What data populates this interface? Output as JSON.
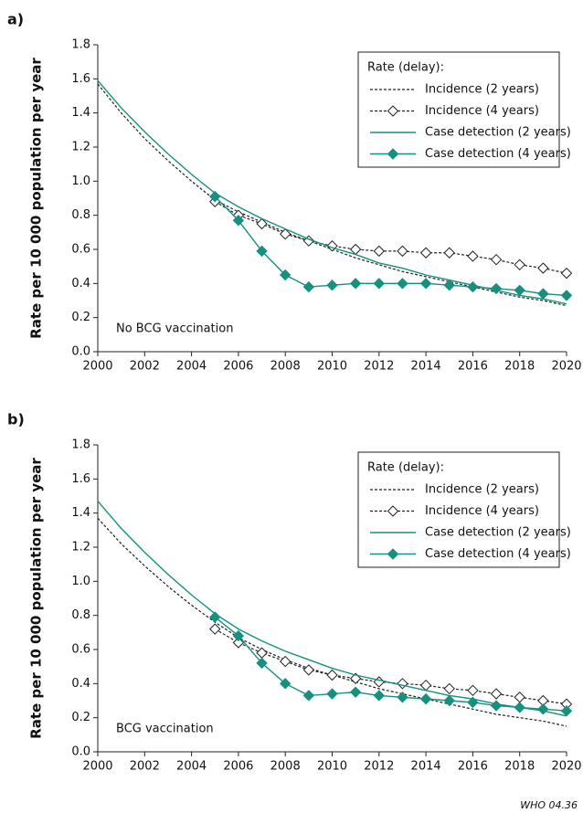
{
  "chart_data": [
    {
      "type": "line",
      "panel_label": "a)",
      "y_label": "Rate per 10 000 population per year",
      "annotation": "No BCG vaccination",
      "legend_title": "Rate (delay):",
      "legend": "upper right",
      "x": [
        2000,
        2001,
        2002,
        2003,
        2004,
        2005,
        2006,
        2007,
        2008,
        2009,
        2010,
        2011,
        2012,
        2013,
        2014,
        2015,
        2016,
        2017,
        2018,
        2019,
        2020
      ],
      "xlim": [
        2000,
        2020
      ],
      "xticks": [
        2000,
        2002,
        2004,
        2006,
        2008,
        2010,
        2012,
        2014,
        2016,
        2018,
        2020
      ],
      "ylim": [
        0,
        1.8
      ],
      "yticks": [
        {
          "value": 0,
          "label": "0.0"
        },
        0.2,
        0.4,
        0.6,
        0.8,
        {
          "value": 1,
          "label": "1.0"
        },
        1.2,
        1.4,
        1.6,
        1.8
      ],
      "series": [
        {
          "name": "Incidence (2 years)",
          "color": "#222222",
          "dash": true,
          "marker": "none",
          "values": [
            1.57,
            1.4,
            1.25,
            1.12,
            1.0,
            0.89,
            0.82,
            0.76,
            0.7,
            0.65,
            0.6,
            0.55,
            0.51,
            0.47,
            0.44,
            0.41,
            0.38,
            0.35,
            0.32,
            0.3,
            0.27
          ]
        },
        {
          "name": "Incidence (4 years)",
          "color": "#222222",
          "dash": true,
          "marker": "open",
          "values": [
            null,
            null,
            null,
            null,
            null,
            0.88,
            0.8,
            0.75,
            0.69,
            0.65,
            0.62,
            0.6,
            0.59,
            0.59,
            0.58,
            0.58,
            0.56,
            0.54,
            0.51,
            0.49,
            0.46
          ]
        },
        {
          "name": "Case detection (2 years)",
          "color": "#16907f",
          "dash": false,
          "marker": "none",
          "values": [
            1.59,
            1.43,
            1.29,
            1.16,
            1.04,
            0.93,
            0.85,
            0.78,
            0.72,
            0.66,
            0.61,
            0.57,
            0.52,
            0.49,
            0.45,
            0.42,
            0.39,
            0.36,
            0.33,
            0.31,
            0.28
          ]
        },
        {
          "name": "Case detection (4 years)",
          "color": "#16907f",
          "dash": false,
          "marker": "filled",
          "values": [
            null,
            null,
            null,
            null,
            null,
            0.91,
            0.77,
            0.59,
            0.45,
            0.38,
            0.39,
            0.4,
            0.4,
            0.4,
            0.4,
            0.39,
            0.38,
            0.37,
            0.36,
            0.34,
            0.33
          ]
        }
      ]
    },
    {
      "type": "line",
      "panel_label": "b)",
      "y_label": "Rate per 10 000 population per year",
      "annotation": "BCG vaccination",
      "legend_title": "Rate (delay):",
      "legend": "upper right",
      "x": [
        2000,
        2001,
        2002,
        2003,
        2004,
        2005,
        2006,
        2007,
        2008,
        2009,
        2010,
        2011,
        2012,
        2013,
        2014,
        2015,
        2016,
        2017,
        2018,
        2019,
        2020
      ],
      "xlim": [
        2000,
        2020
      ],
      "xticks": [
        2000,
        2002,
        2004,
        2006,
        2008,
        2010,
        2012,
        2014,
        2016,
        2018,
        2020
      ],
      "ylim": [
        0,
        1.8
      ],
      "yticks": [
        {
          "value": 0,
          "label": "0.0"
        },
        0.2,
        0.4,
        0.6,
        0.8,
        {
          "value": 1,
          "label": "1.0"
        },
        1.2,
        1.4,
        1.6,
        1.8
      ],
      "series": [
        {
          "name": "Incidence (2 years)",
          "color": "#222222",
          "dash": true,
          "marker": "none",
          "values": [
            1.37,
            1.22,
            1.09,
            0.97,
            0.86,
            0.76,
            0.67,
            0.6,
            0.54,
            0.49,
            0.45,
            0.41,
            0.37,
            0.34,
            0.31,
            0.28,
            0.25,
            0.22,
            0.2,
            0.18,
            0.15
          ]
        },
        {
          "name": "Incidence (4 years)",
          "color": "#222222",
          "dash": true,
          "marker": "open",
          "values": [
            null,
            null,
            null,
            null,
            null,
            0.72,
            0.64,
            0.58,
            0.53,
            0.48,
            0.45,
            0.43,
            0.41,
            0.4,
            0.39,
            0.37,
            0.36,
            0.34,
            0.32,
            0.3,
            0.28
          ]
        },
        {
          "name": "Case detection (2 years)",
          "color": "#16907f",
          "dash": false,
          "marker": "none",
          "values": [
            1.47,
            1.31,
            1.17,
            1.04,
            0.92,
            0.81,
            0.72,
            0.65,
            0.59,
            0.54,
            0.49,
            0.45,
            0.42,
            0.39,
            0.36,
            0.33,
            0.31,
            0.28,
            0.26,
            0.24,
            0.21
          ]
        },
        {
          "name": "Case detection (4 years)",
          "color": "#16907f",
          "dash": false,
          "marker": "filled",
          "values": [
            null,
            null,
            null,
            null,
            null,
            0.79,
            0.68,
            0.52,
            0.4,
            0.33,
            0.34,
            0.35,
            0.33,
            0.32,
            0.31,
            0.3,
            0.29,
            0.27,
            0.26,
            0.25,
            0.24
          ]
        }
      ]
    }
  ],
  "credit": "WHO 04.36"
}
